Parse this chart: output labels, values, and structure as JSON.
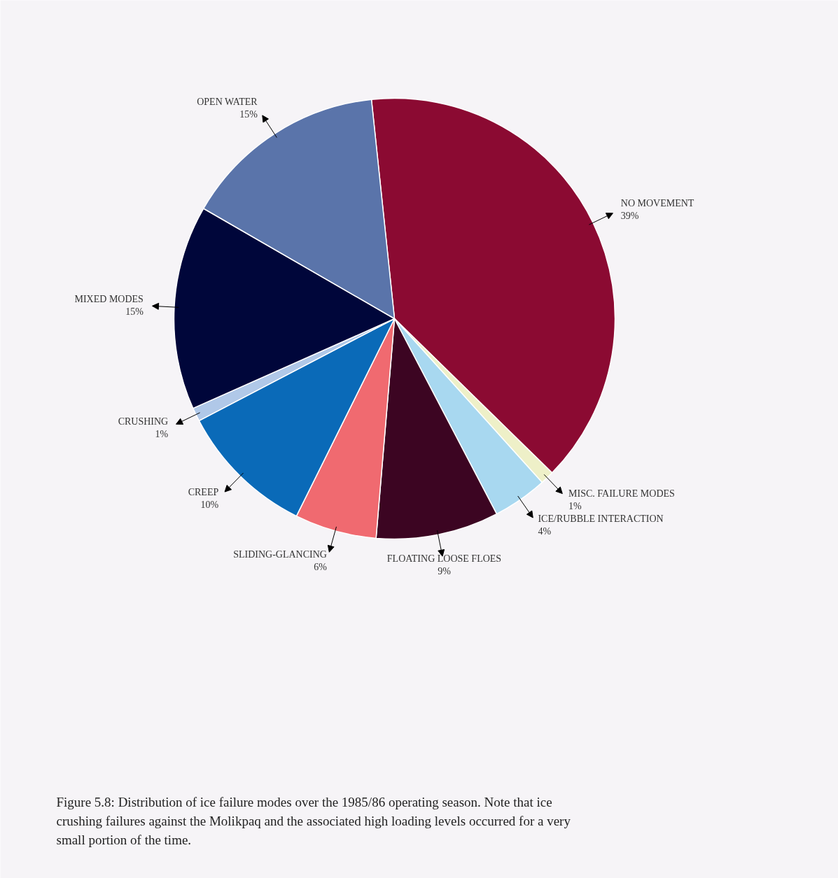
{
  "chart_data": {
    "type": "pie",
    "categories": [
      "NO MOVEMENT",
      "MISC. FAILURE MODES",
      "ICE/RUBBLE INTERACTION",
      "FLOATING LOOSE FLOES",
      "SLIDING-GLANCING",
      "CREEP",
      "CRUSHING",
      "MIXED MODES",
      "OPEN WATER"
    ],
    "values": [
      39,
      1,
      4,
      9,
      6,
      10,
      1,
      15,
      15
    ],
    "value_labels": [
      "39%",
      "1%",
      "4%",
      "9%",
      "6%",
      "10%",
      "1%",
      "15%",
      "15%"
    ],
    "colors": [
      "#8b0a32",
      "#eef0c8",
      "#a8d8f0",
      "#3c0522",
      "#f06a70",
      "#0a6ab8",
      "#b0c8e8",
      "#00063a",
      "#5a74aa"
    ],
    "annotations": [
      "Figure 5.8:  Distribution of ice failure modes over the 1985/86 operating season.  Note that ice crushing failures against the Molikpaq and the associated high loading levels occurred for a very small portion of the time."
    ]
  }
}
